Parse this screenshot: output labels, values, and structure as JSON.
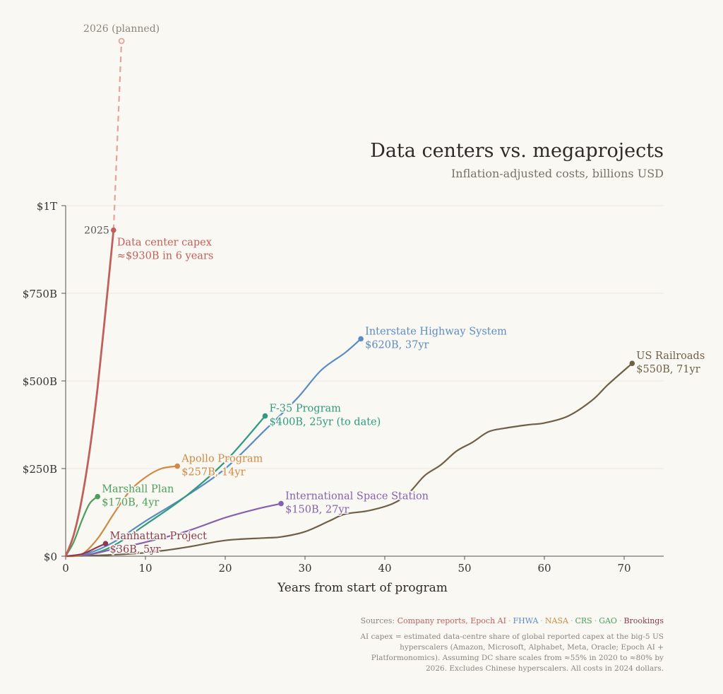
{
  "title": "Data centers vs. megaprojects",
  "subtitle": "Inflation-adjusted costs, billions USD",
  "sources_label": "Sources:",
  "sources": [
    {
      "name": "Company reports, Epoch AI",
      "color": "#c0605d"
    },
    {
      "name": "FHWA",
      "color": "#5a8cc4"
    },
    {
      "name": "NASA",
      "color": "#cf8a44"
    },
    {
      "name": "CRS",
      "color": "#4c9e5c"
    },
    {
      "name": "GAO",
      "color": "#4c9e5c"
    },
    {
      "name": "Brookings",
      "color": "#8b3a4f"
    }
  ],
  "source_separator": "·",
  "note": "AI capex = estimated data-centre share of global reported capex at the big-5 US hyperscalers (Amazon, Microsoft, Alphabet, Meta, Oracle; Epoch AI + Platformonomics). Assuming DC share scales from ≈55% in 2020 to ≈80% by 2026. Excludes Chinese hyperscalers. All costs in 2024 dollars.",
  "chart_data": {
    "type": "line",
    "xlabel": "Years from start of program",
    "ylabel": "",
    "xlim": [
      0,
      75
    ],
    "ylim": [
      0,
      1000
    ],
    "x_ticks": [
      0,
      10,
      20,
      30,
      40,
      50,
      60,
      70
    ],
    "y_ticks": [
      {
        "value": 0,
        "label": "$0"
      },
      {
        "value": 250,
        "label": "$250B"
      },
      {
        "value": 500,
        "label": "$500B"
      },
      {
        "value": 750,
        "label": "$750B"
      },
      {
        "value": 1000,
        "label": "$1T"
      }
    ],
    "grid": "horizontal",
    "series": [
      {
        "key": "railroads",
        "name": "US Railroads",
        "value_label": "$550B, 71yr",
        "color": "#6e6047",
        "points": [
          [
            0,
            0
          ],
          [
            5,
            3
          ],
          [
            10,
            10
          ],
          [
            15,
            25
          ],
          [
            20,
            45
          ],
          [
            25,
            52
          ],
          [
            27,
            55
          ],
          [
            30,
            70
          ],
          [
            33,
            100
          ],
          [
            35,
            120
          ],
          [
            38,
            130
          ],
          [
            41,
            150
          ],
          [
            43,
            180
          ],
          [
            45,
            230
          ],
          [
            47,
            260
          ],
          [
            49,
            300
          ],
          [
            51,
            325
          ],
          [
            53,
            355
          ],
          [
            55,
            365
          ],
          [
            58,
            375
          ],
          [
            60,
            380
          ],
          [
            63,
            400
          ],
          [
            66,
            445
          ],
          [
            68,
            490
          ],
          [
            71,
            550
          ]
        ]
      },
      {
        "key": "highway",
        "name": "Interstate Highway System",
        "value_label": "$620B, 37yr",
        "color": "#5a8cc4",
        "points": [
          [
            0,
            0
          ],
          [
            3,
            10
          ],
          [
            6,
            40
          ],
          [
            10,
            100
          ],
          [
            15,
            170
          ],
          [
            20,
            250
          ],
          [
            25,
            360
          ],
          [
            29,
            450
          ],
          [
            32,
            530
          ],
          [
            35,
            580
          ],
          [
            37,
            620
          ]
        ]
      },
      {
        "key": "f35",
        "name": "F-35 Program",
        "value_label": "$400B, 25yr (to date)",
        "color": "#2f9a7e",
        "points": [
          [
            0,
            0
          ],
          [
            3,
            5
          ],
          [
            6,
            30
          ],
          [
            10,
            90
          ],
          [
            15,
            170
          ],
          [
            20,
            270
          ],
          [
            25,
            400
          ]
        ]
      },
      {
        "key": "iss",
        "name": "International Space Station",
        "value_label": "$150B, 27yr",
        "color": "#8461b0",
        "points": [
          [
            0,
            0
          ],
          [
            3,
            5
          ],
          [
            6,
            20
          ],
          [
            10,
            40
          ],
          [
            15,
            70
          ],
          [
            20,
            110
          ],
          [
            24,
            135
          ],
          [
            27,
            150
          ]
        ]
      },
      {
        "key": "apollo",
        "name": "Apollo Program",
        "value_label": "$257B, 14yr",
        "color": "#cf8a44",
        "points": [
          [
            0,
            0
          ],
          [
            2,
            5
          ],
          [
            4,
            50
          ],
          [
            6,
            120
          ],
          [
            8,
            185
          ],
          [
            10,
            225
          ],
          [
            12,
            250
          ],
          [
            14,
            257
          ]
        ]
      },
      {
        "key": "marshall",
        "name": "Marshall Plan",
        "value_label": "$170B, 4yr",
        "color": "#4c9e5c",
        "points": [
          [
            0,
            0
          ],
          [
            1,
            40
          ],
          [
            2,
            100
          ],
          [
            3,
            150
          ],
          [
            4,
            170
          ]
        ]
      },
      {
        "key": "manhattan",
        "name": "Manhattan Project",
        "value_label": "$36B, 5yr",
        "color": "#8b3a4f",
        "points": [
          [
            0,
            0
          ],
          [
            1,
            2
          ],
          [
            2,
            6
          ],
          [
            3,
            15
          ],
          [
            4,
            26
          ],
          [
            5,
            36
          ]
        ]
      },
      {
        "key": "dc",
        "name": "Data center capex",
        "value_label": "≈$930B in 6 years",
        "point_label": "2025",
        "color": "#c0605d",
        "points": [
          [
            0,
            0
          ],
          [
            1,
            60
          ],
          [
            2,
            160
          ],
          [
            3,
            300
          ],
          [
            4,
            480
          ],
          [
            5,
            700
          ],
          [
            6,
            930
          ]
        ]
      }
    ],
    "projection": {
      "label": "2026 (planned)",
      "color": "#e4a39c",
      "from": [
        6,
        930
      ],
      "to": [
        7,
        1470
      ]
    }
  }
}
